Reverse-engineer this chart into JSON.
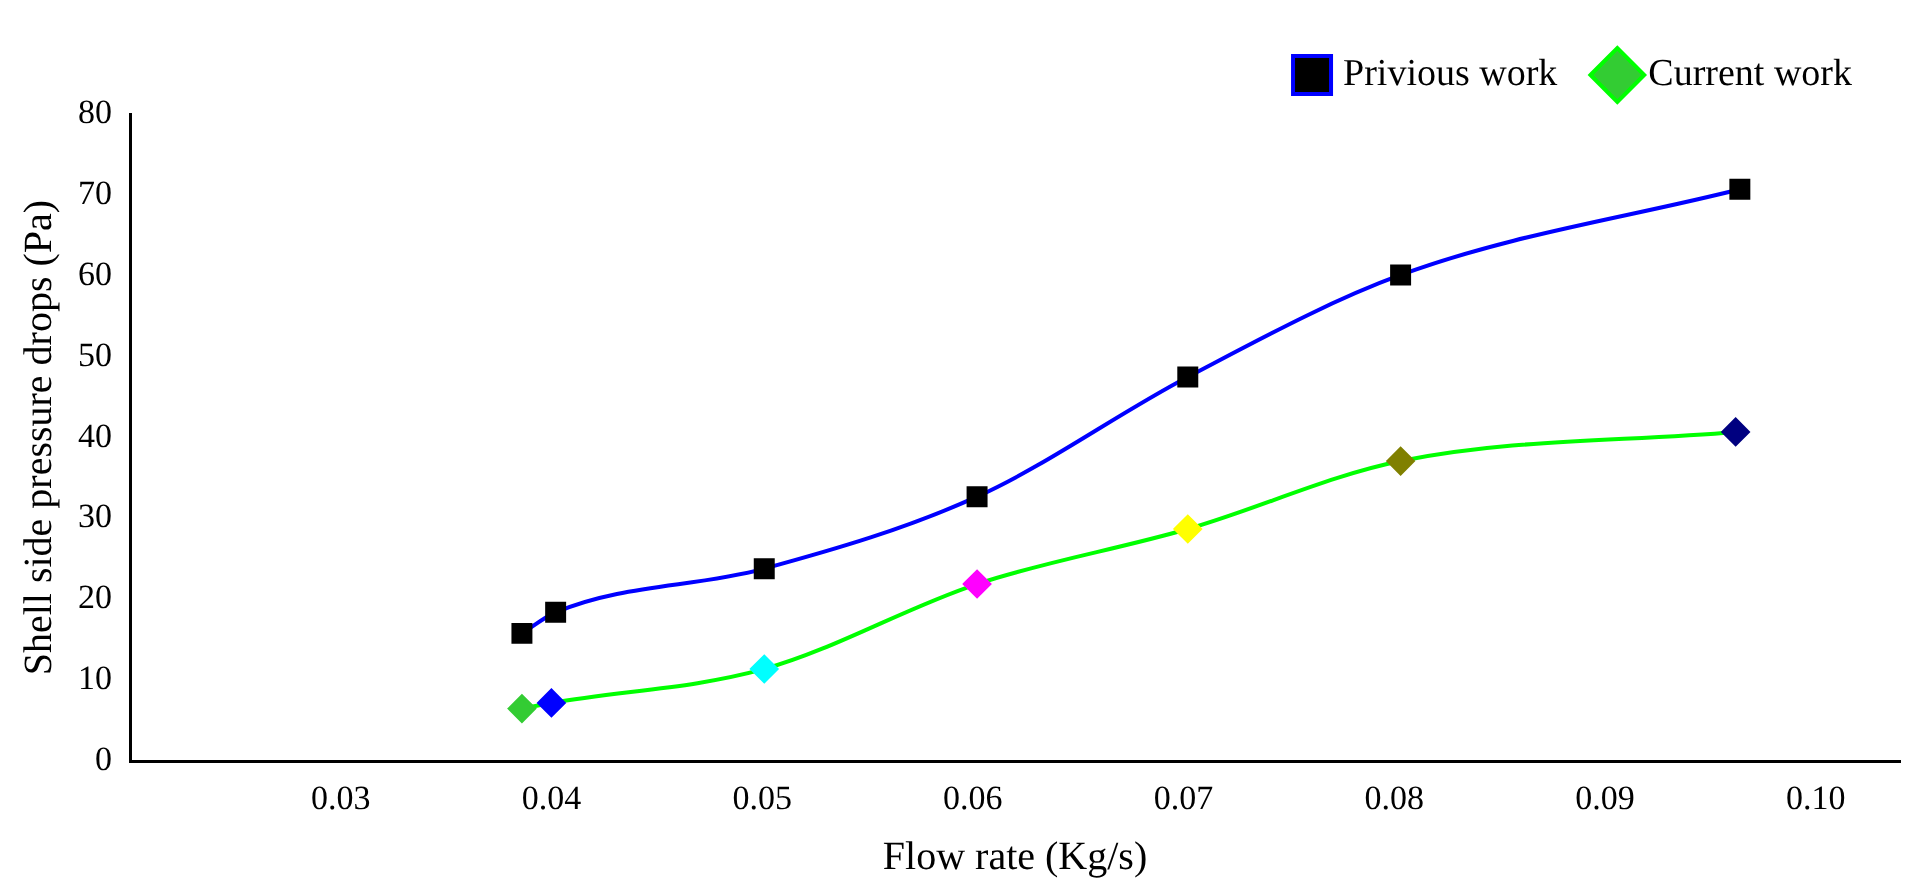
{
  "chart_data": {
    "type": "line",
    "xlabel": "Flow rate (Kg/s)",
    "ylabel": "Shell side pressure drops (Pa)",
    "xlim": [
      0.02,
      0.104
    ],
    "xticks": [
      0.03,
      0.04,
      0.05,
      0.06,
      0.07,
      0.08,
      0.09,
      {
        "value": 0.1,
        "label": "0.10"
      }
    ],
    "ylim": [
      0,
      80
    ],
    "yticks": [
      0,
      10,
      20,
      30,
      40,
      50,
      60,
      70,
      80
    ],
    "grid": false,
    "legend": "top right",
    "series": [
      {
        "name": "Privious work",
        "color": "#0000ff",
        "marker": "square",
        "colors": [
          "#000000",
          "#000000",
          "#000000",
          "#000000",
          "#000000",
          "#000000",
          "#000000"
        ],
        "x": [
          0.0386,
          0.0402,
          0.0501,
          0.0602,
          0.0702,
          0.0803,
          0.0964
        ],
        "values": [
          15.8,
          18.4,
          23.8,
          32.7,
          47.5,
          60.1,
          70.7
        ]
      },
      {
        "name": "Current work",
        "color": "#00ff00",
        "marker": "diamond",
        "colors": [
          "#33cc33",
          "#0000ff",
          "#00ffff",
          "#ff00ff",
          "#ffff00",
          "#808000",
          "#000080"
        ],
        "x": [
          0.0386,
          0.04,
          0.0501,
          0.0602,
          0.0702,
          0.0803,
          0.0962
        ],
        "values": [
          6.5,
          7.2,
          11.4,
          21.9,
          28.7,
          37.1,
          40.7
        ]
      }
    ]
  }
}
